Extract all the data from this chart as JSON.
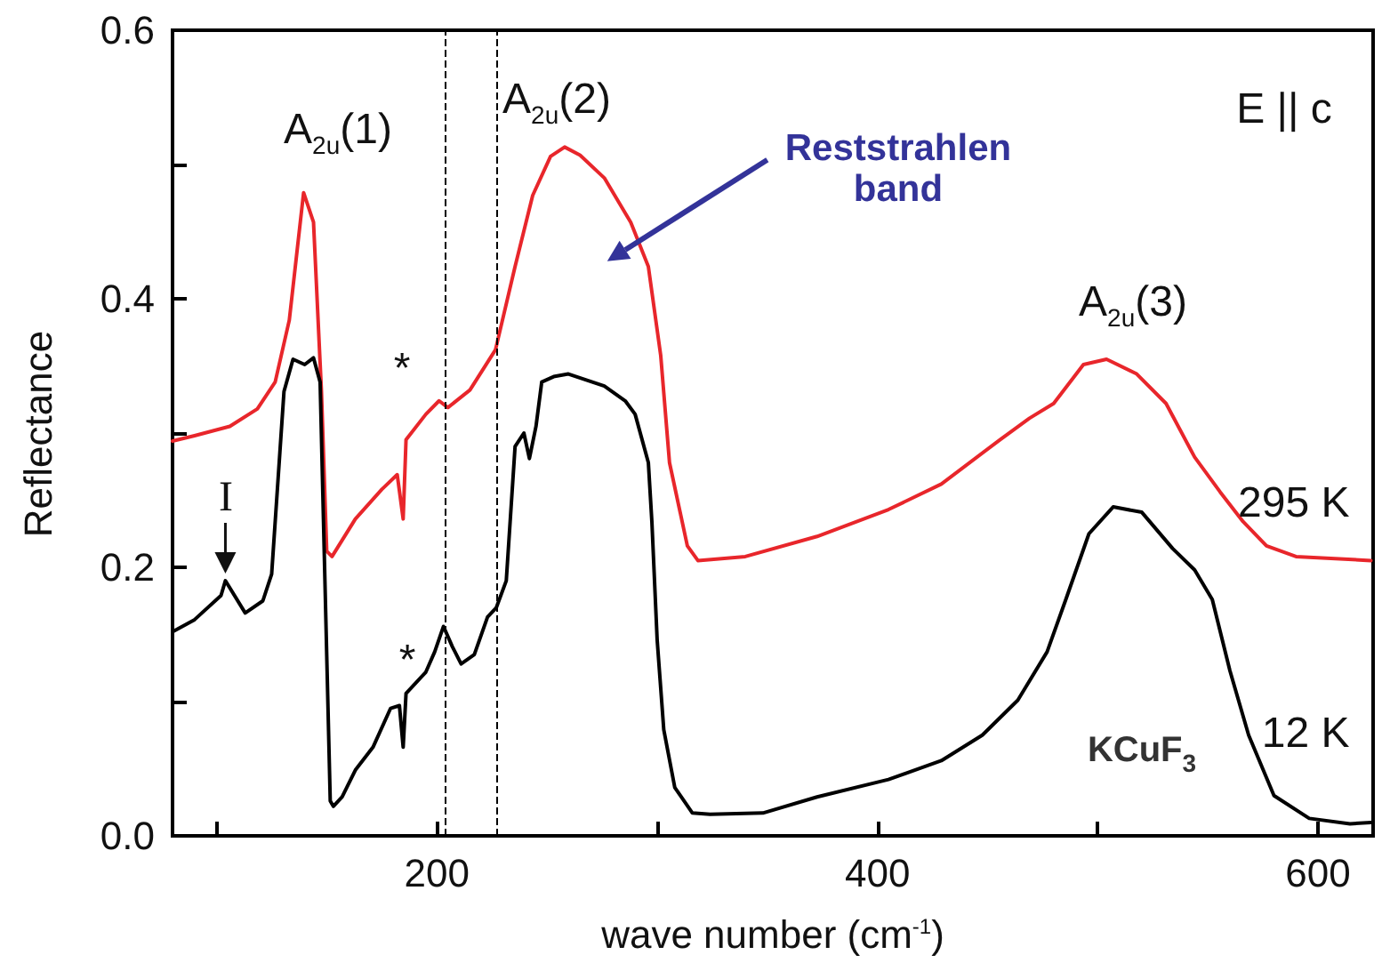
{
  "chart_data": {
    "type": "line",
    "xlabel": "wave number (cm$^{-1}$)",
    "ylabel": "Reflectance",
    "xlim": [
      80,
      625
    ],
    "ylim": [
      0,
      0.6
    ],
    "xticks": [
      {
        "value": 100,
        "label": null
      },
      200,
      {
        "value": 300,
        "label": null
      },
      400,
      {
        "value": 500,
        "label": null
      },
      600
    ],
    "yticks": [
      {
        "value": 0,
        "label": "0.0"
      },
      {
        "value": 0.1,
        "label": null
      },
      0.2,
      {
        "value": 0.3,
        "label": null
      },
      0.4,
      {
        "value": 0.5,
        "label": null
      },
      0.6
    ],
    "grid": false,
    "legend": false,
    "marker": "none",
    "line_style": "solid",
    "series": [
      {
        "name": "295 K",
        "color": "#e8262b",
        "x": [
          80,
          90,
          106,
          118.5,
          126.6,
          133,
          139.5,
          144,
          147.6,
          150,
          152.4,
          163,
          175,
          182,
          184.7,
          186,
          195,
          201,
          205,
          215,
          226.6,
          235.5,
          243.5,
          251.6,
          258,
          265,
          276,
          288,
          296,
          301.6,
          305.6,
          313.7,
          318.5,
          340,
          372.6,
          405,
          429,
          455.6,
          469,
          480,
          493.5,
          504,
          517.7,
          531,
          544,
          555.6,
          566,
          576.6,
          590,
          624
        ],
        "values": [
          0.294,
          0.298,
          0.305,
          0.318,
          0.338,
          0.384,
          0.479,
          0.457,
          0.331,
          0.212,
          0.208,
          0.236,
          0.258,
          0.269,
          0.236,
          0.295,
          0.314,
          0.324,
          0.319,
          0.332,
          0.362,
          0.424,
          0.477,
          0.506,
          0.513,
          0.507,
          0.49,
          0.457,
          0.424,
          0.358,
          0.278,
          0.216,
          0.205,
          0.208,
          0.223,
          0.243,
          0.262,
          0.295,
          0.311,
          0.322,
          0.351,
          0.355,
          0.344,
          0.322,
          0.282,
          0.256,
          0.234,
          0.216,
          0.208,
          0.205
        ]
      },
      {
        "name": "12 K",
        "color": "#000000",
        "x": [
          80,
          90,
          102,
          104,
          113,
          121,
          125,
          130.6,
          134.7,
          140,
          144,
          147,
          151.6,
          153,
          157,
          163,
          171,
          179,
          183,
          184.7,
          186,
          195,
          199,
          203,
          207,
          211,
          217,
          223,
          227,
          231.5,
          235.5,
          239.5,
          242,
          245,
          247.6,
          253,
          259.7,
          276,
          285.5,
          290,
          296,
          297.6,
          300,
          303,
          308,
          316,
          324,
          348,
          372.6,
          405,
          429,
          447.6,
          463.7,
          477,
          485.5,
          496,
          507,
          520,
          534,
          544,
          552,
          560,
          568.5,
          580,
          596,
          614.5,
          624
        ],
        "values": [
          0.152,
          0.161,
          0.179,
          0.19,
          0.166,
          0.175,
          0.195,
          0.331,
          0.355,
          0.351,
          0.356,
          0.338,
          0.026,
          0.022,
          0.029,
          0.049,
          0.066,
          0.095,
          0.097,
          0.066,
          0.106,
          0.122,
          0.137,
          0.156,
          0.141,
          0.128,
          0.135,
          0.163,
          0.17,
          0.19,
          0.29,
          0.3,
          0.281,
          0.305,
          0.338,
          0.342,
          0.344,
          0.335,
          0.324,
          0.314,
          0.278,
          0.234,
          0.146,
          0.079,
          0.036,
          0.017,
          0.016,
          0.017,
          0.029,
          0.042,
          0.056,
          0.075,
          0.101,
          0.137,
          0.176,
          0.225,
          0.245,
          0.241,
          0.214,
          0.198,
          0.176,
          0.123,
          0.075,
          0.03,
          0.013,
          0.009,
          0.01
        ]
      }
    ],
    "ref_lines": [
      {
        "axis": "x",
        "value": 204,
        "line_style": "dashed",
        "color": "#000000"
      },
      {
        "axis": "x",
        "value": 227,
        "line_style": "dashed",
        "color": "#000000"
      }
    ],
    "annotations": [
      "A$_{2u}$(1)",
      "A$_{2u}$(2)",
      "A$_{2u}$(3)",
      "E || c",
      "Reststrahlen band",
      "KCuF$_{3}$",
      "*",
      "*",
      {
        "text": "I",
        "x": 104,
        "y": 0.19
      }
    ]
  }
}
